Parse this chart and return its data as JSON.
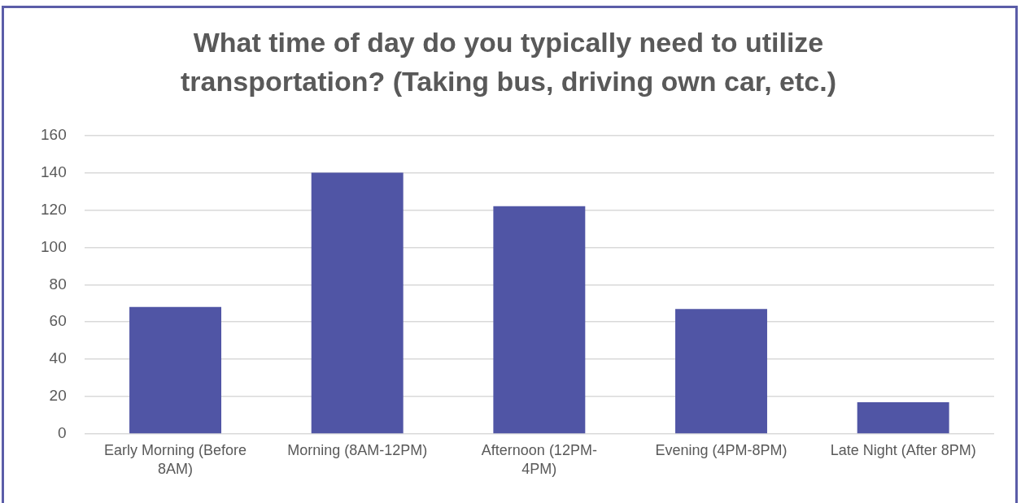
{
  "chart_data": {
    "type": "bar",
    "title": "What time of day do you typically need to utilize transportation? (Taking bus, driving own car, etc.)",
    "categories": [
      "Early Morning (Before 8AM)",
      "Morning (8AM-12PM)",
      "Afternoon (12PM-4PM)",
      "Evening (4PM-8PM)",
      "Late Night (After 8PM)"
    ],
    "values": [
      68,
      140,
      122,
      67,
      17
    ],
    "color": "#5055a5",
    "ylim": [
      0,
      160
    ],
    "yticks": [
      0,
      20,
      40,
      60,
      80,
      100,
      120,
      140,
      160
    ],
    "grid": "y"
  }
}
